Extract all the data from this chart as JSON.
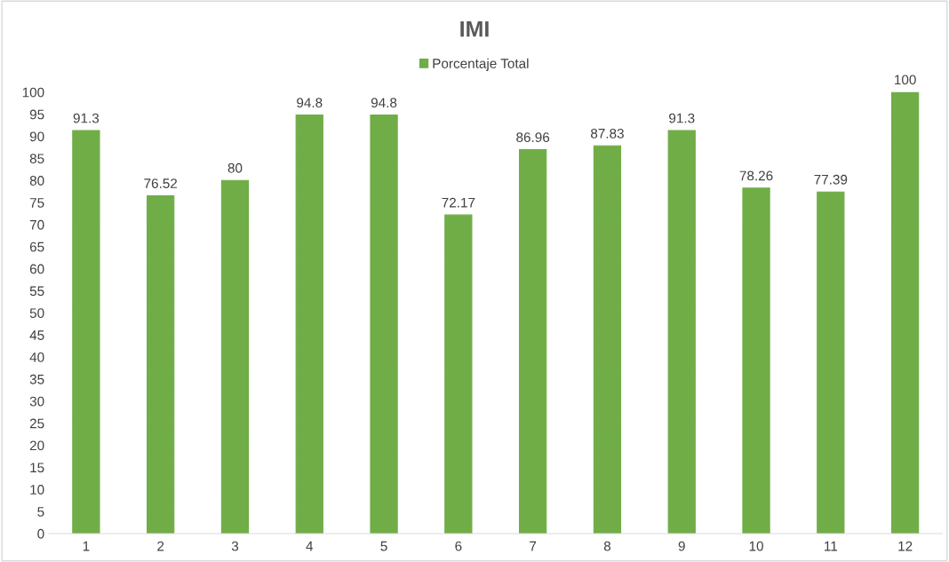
{
  "chart_data": {
    "type": "bar",
    "title": "IMI",
    "categories": [
      "1",
      "2",
      "3",
      "4",
      "5",
      "6",
      "7",
      "8",
      "9",
      "10",
      "11",
      "12"
    ],
    "series": [
      {
        "name": "Porcentaje Total",
        "color": "#70ad47",
        "values": [
          91.3,
          76.52,
          80,
          94.8,
          94.8,
          72.17,
          86.96,
          87.83,
          91.3,
          78.26,
          77.39,
          100
        ]
      }
    ],
    "ylim": [
      0,
      100
    ],
    "yticks": [
      0,
      5,
      10,
      15,
      20,
      25,
      30,
      35,
      40,
      45,
      50,
      55,
      60,
      65,
      70,
      75,
      80,
      85,
      90,
      95,
      100
    ],
    "data_labels": true,
    "legend": "top",
    "grid": false
  }
}
